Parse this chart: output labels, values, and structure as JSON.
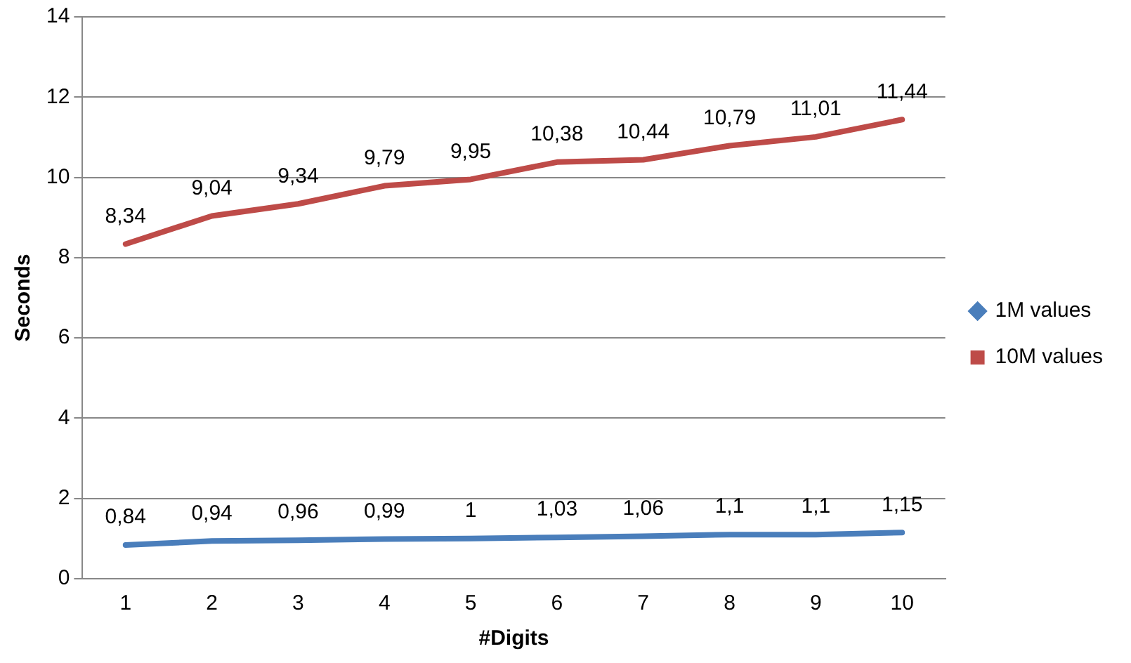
{
  "chart_data": {
    "type": "line",
    "xlabel": "#Digits",
    "ylabel": "Seconds",
    "categories": [
      "1",
      "2",
      "3",
      "4",
      "5",
      "6",
      "7",
      "8",
      "9",
      "10"
    ],
    "series": [
      {
        "name": "1M values",
        "color": "#4a7ebb",
        "values": [
          0.84,
          0.94,
          0.96,
          0.99,
          1,
          1.03,
          1.06,
          1.1,
          1.1,
          1.15
        ],
        "value_labels": [
          "0,84",
          "0,94",
          "0,96",
          "0,99",
          "1",
          "1,03",
          "1,06",
          "1,1",
          "1,1",
          "1,15"
        ]
      },
      {
        "name": "10M values",
        "color": "#be4b48",
        "values": [
          8.34,
          9.04,
          9.34,
          9.79,
          9.95,
          10.38,
          10.44,
          10.79,
          11.01,
          11.44
        ],
        "value_labels": [
          "8,34",
          "9,04",
          "9,34",
          "9,79",
          "9,95",
          "10,38",
          "10,44",
          "10,79",
          "11,01",
          "11,44"
        ]
      }
    ],
    "ylim": [
      0,
      14
    ],
    "yticks": [
      0,
      2,
      4,
      6,
      8,
      10,
      12,
      14
    ],
    "grid": "y",
    "legend": "right",
    "marker": "none",
    "line_style": "solid"
  }
}
